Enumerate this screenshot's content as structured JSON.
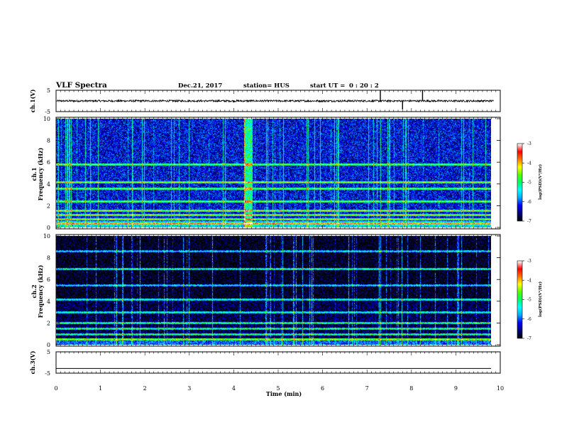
{
  "header": {
    "title": "VLF Spectra",
    "date": "Dec.21, 2017",
    "station": "station= HUS",
    "start_prefix": "start  UT  =",
    "start_time": "0 : 20 : 2"
  },
  "colors": {
    "waveform": "#000000",
    "spectrogram_background": "#0a1470",
    "band_line": "#33e6c8",
    "colormap": [
      "#000000",
      "#000080",
      "#0000ff",
      "#00aaff",
      "#00ffff",
      "#00ff66",
      "#55ff00",
      "#ffff00",
      "#ff7700",
      "#ff0000",
      "#ffffff"
    ]
  },
  "chart_data": [
    {
      "type": "line",
      "panel": "ch1-waveform",
      "ylabel": "ch.1(V)",
      "ylim": [
        -5,
        5
      ],
      "y_ticks": [
        "5",
        "-5"
      ],
      "xlim": [
        0,
        10
      ],
      "baseline": 0,
      "noise_amplitude": 0.5,
      "spikes_x": [
        7.3,
        7.8,
        8.25
      ]
    },
    {
      "type": "heatmap",
      "panel": "ch1-spectrogram",
      "ylabel": "Frequency (kHz)",
      "channel_label": "ch.1",
      "xlim": [
        0,
        9.85
      ],
      "ylim": [
        0,
        10
      ],
      "y_ticks": [
        "0",
        "2",
        "4",
        "6",
        "8",
        "10"
      ],
      "background_log_psd": -6.3,
      "bands_khz": [
        0.4,
        0.8,
        1.2,
        1.6,
        2.4,
        3.6,
        4.2,
        5.8
      ],
      "broadband_event_minutes": [
        4.3,
        4.4
      ],
      "colorbar": {
        "label": "log(PSD)(V²/Hz)",
        "ticks": [
          "-3",
          "-4",
          "-5",
          "-6",
          "-7"
        ],
        "range": [
          -7,
          -3
        ]
      }
    },
    {
      "type": "heatmap",
      "panel": "ch2-spectrogram",
      "ylabel": "Frequency (kHz)",
      "channel_label": "ch.2",
      "xlim": [
        0,
        9.85
      ],
      "ylim": [
        0,
        10
      ],
      "y_ticks": [
        "0",
        "2",
        "4",
        "6",
        "8",
        "10"
      ],
      "background_log_psd": -6.8,
      "bands_khz": [
        0.5,
        1.0,
        1.5,
        2.0,
        3.0,
        4.2,
        5.5,
        7.0,
        8.6
      ],
      "colorbar": {
        "label": "log(PSD)(V²/Hz)",
        "ticks": [
          "-3",
          "-4",
          "-5",
          "-6",
          "-7"
        ],
        "range": [
          -7,
          -3
        ]
      }
    },
    {
      "type": "line",
      "panel": "ch3-waveform",
      "ylabel": "ch.3(V)",
      "ylim": [
        -5,
        5
      ],
      "y_ticks": [
        "5",
        "-5"
      ],
      "xlim": [
        0,
        10
      ],
      "constant_value": -2.8
    }
  ],
  "x_axis": {
    "label": "Time (min)",
    "ticks": [
      "0",
      "1",
      "2",
      "3",
      "4",
      "5",
      "6",
      "7",
      "8",
      "9",
      "10"
    ]
  }
}
